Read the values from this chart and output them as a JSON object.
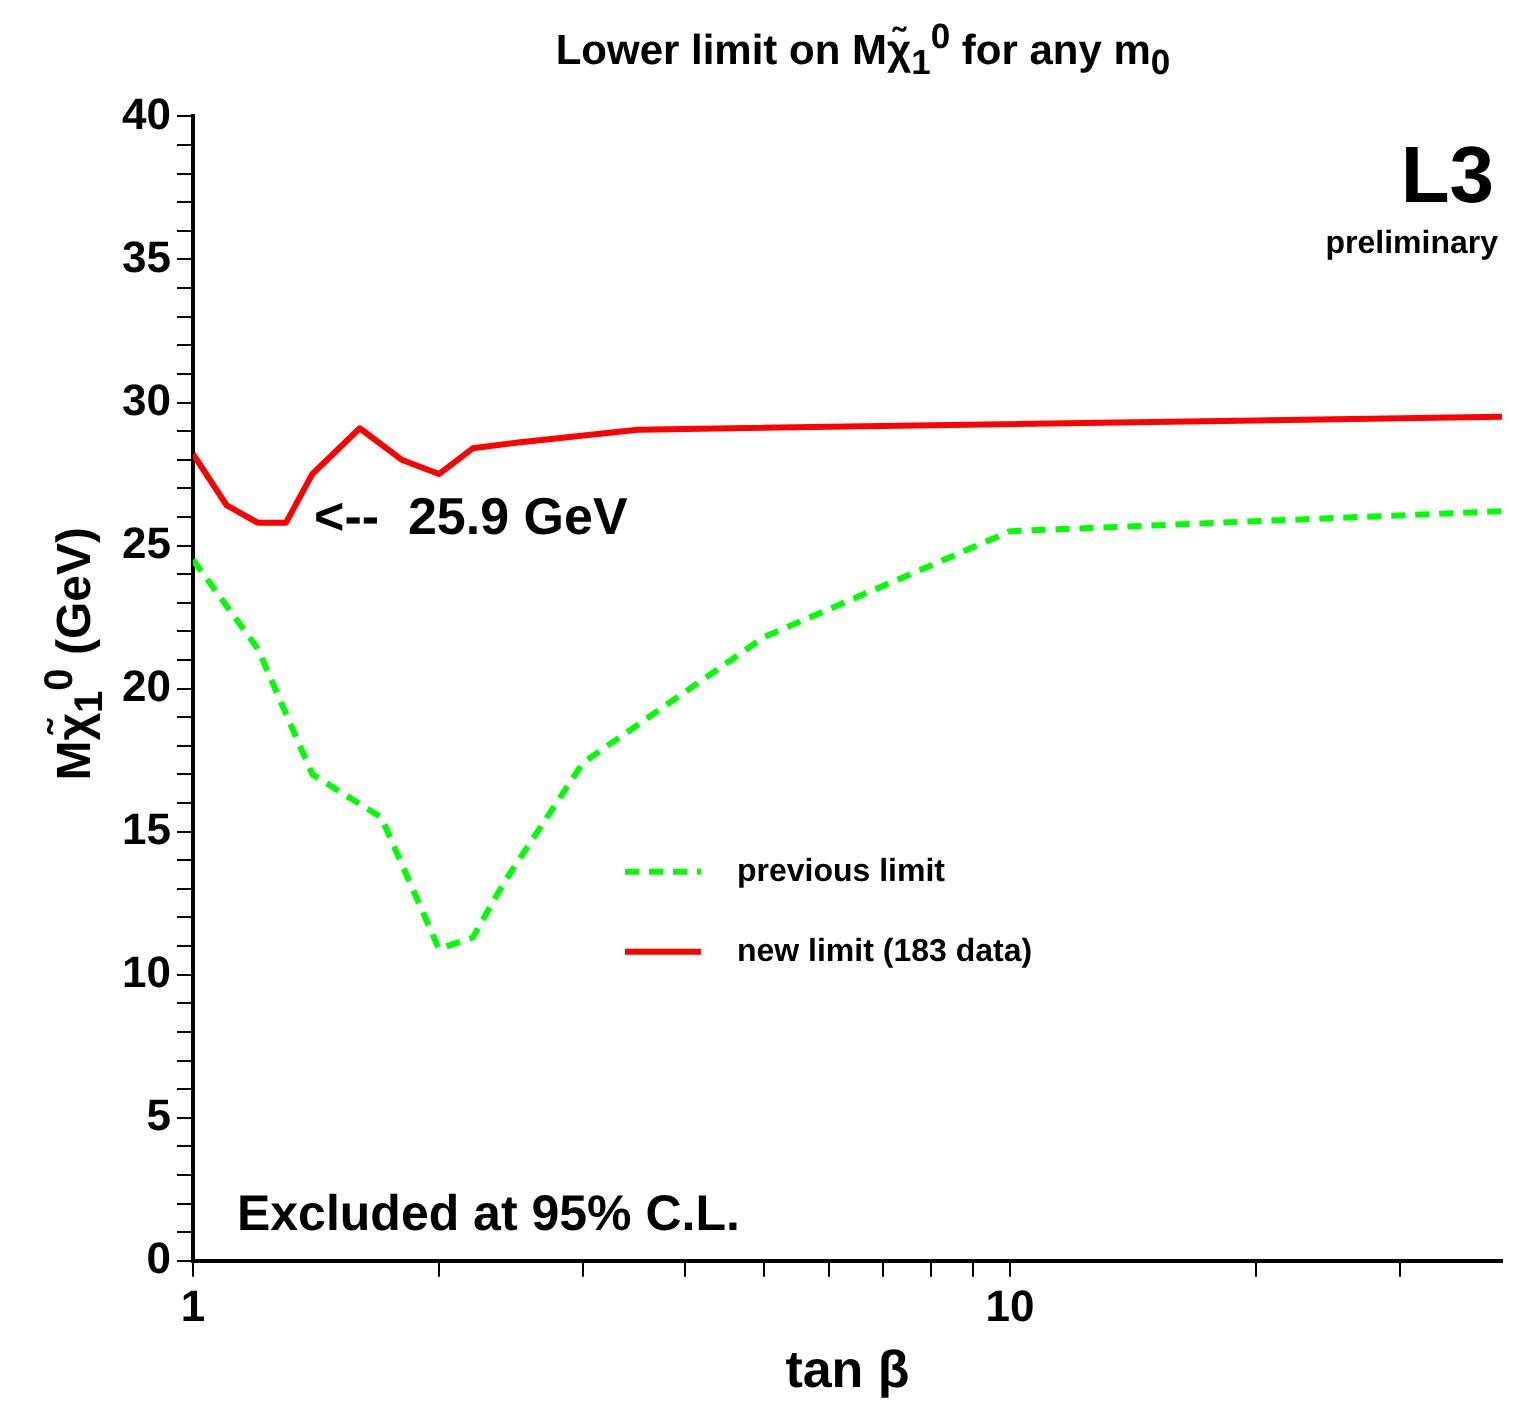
{
  "chart_data": {
    "type": "line",
    "title": "Lower limit on Mχ̃$_{1}$$^{0}$ for any m$_{0}$",
    "xlabel": "tan β",
    "ylabel": "Mχ̃$_{1}$$^{0}$ (GeV)",
    "series": [
      {
        "name": "previous limit",
        "color": "#00ff00",
        "line_style": "dashed",
        "x": [
          1,
          1.2,
          1.4,
          1.7,
          2.0,
          2.2,
          2.4,
          3.0,
          5.0,
          10,
          40
        ],
        "values": [
          24.5,
          21.4,
          17.0,
          15.5,
          10.9,
          11.3,
          13.2,
          17.4,
          21.8,
          25.5,
          26.2
        ]
      },
      {
        "name": "new limit (183 data)",
        "color": "#ff0000",
        "line_style": "solid",
        "x": [
          1,
          1.1,
          1.2,
          1.3,
          1.4,
          1.6,
          1.8,
          2.0,
          2.2,
          2.5,
          3.5,
          40
        ],
        "values": [
          28.2,
          26.4,
          25.8,
          25.8,
          27.5,
          29.1,
          28.0,
          27.5,
          28.4,
          28.6,
          29.05,
          29.5
        ]
      }
    ],
    "log": "x",
    "xlim": [
      1,
      40
    ],
    "xticks": [
      1,
      {
        "value": 2,
        "label": null
      },
      {
        "value": 3,
        "label": null
      },
      {
        "value": 4,
        "label": null
      },
      {
        "value": 5,
        "label": null
      },
      {
        "value": 6,
        "label": null
      },
      {
        "value": 7,
        "label": null
      },
      {
        "value": 8,
        "label": null
      },
      {
        "value": 9,
        "label": null
      },
      10,
      {
        "value": 20,
        "label": null
      },
      {
        "value": 30,
        "label": null
      }
    ],
    "ylim": [
      0,
      40
    ],
    "yticks": [
      0,
      {
        "value": 1,
        "label": null
      },
      {
        "value": 2,
        "label": null
      },
      {
        "value": 3,
        "label": null
      },
      {
        "value": 4,
        "label": null
      },
      5,
      {
        "value": 6,
        "label": null
      },
      {
        "value": 7,
        "label": null
      },
      {
        "value": 8,
        "label": null
      },
      {
        "value": 9,
        "label": null
      },
      10,
      {
        "value": 11,
        "label": null
      },
      {
        "value": 12,
        "label": null
      },
      {
        "value": 13,
        "label": null
      },
      {
        "value": 14,
        "label": null
      },
      15,
      {
        "value": 16,
        "label": null
      },
      {
        "value": 17,
        "label": null
      },
      {
        "value": 18,
        "label": null
      },
      {
        "value": 19,
        "label": null
      },
      20,
      {
        "value": 21,
        "label": null
      },
      {
        "value": 22,
        "label": null
      },
      {
        "value": 23,
        "label": null
      },
      {
        "value": 24,
        "label": null
      },
      25,
      {
        "value": 26,
        "label": null
      },
      {
        "value": 27,
        "label": null
      },
      {
        "value": 28,
        "label": null
      },
      {
        "value": 29,
        "label": null
      },
      30,
      {
        "value": 31,
        "label": null
      },
      {
        "value": 32,
        "label": null
      },
      {
        "value": 33,
        "label": null
      },
      {
        "value": 34,
        "label": null
      },
      35,
      {
        "value": 36,
        "label": null
      },
      {
        "value": 37,
        "label": null
      },
      {
        "value": 38,
        "label": null
      },
      {
        "value": 39,
        "label": null
      },
      40
    ],
    "grid": false,
    "legend": "right",
    "marker": "none",
    "annotations": [
      "L3",
      "preliminary",
      "Excluded at 95% C.L.",
      {
        "text": "<--  25.9 GeV",
        "x": 1.3,
        "y": 25.9
      }
    ]
  }
}
